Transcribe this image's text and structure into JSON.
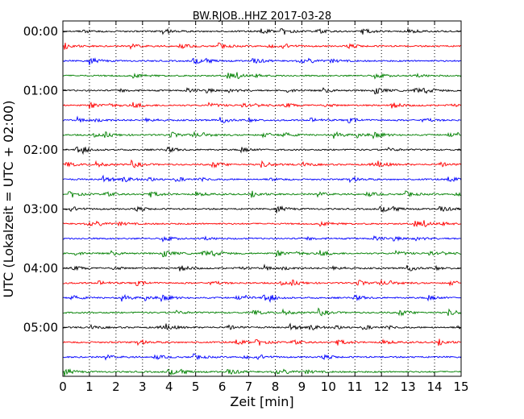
{
  "chart_data": {
    "type": "line",
    "title": "BW.RJOB..HHZ 2017-03-28",
    "xlabel": "Zeit  [min]",
    "ylabel": "UTC (Lokalzeit = UTC + 02:00)",
    "xlim": [
      0,
      15
    ],
    "x_ticks": [
      "0",
      "1",
      "2",
      "3",
      "4",
      "5",
      "6",
      "7",
      "8",
      "9",
      "10",
      "11",
      "12",
      "13",
      "14",
      "15"
    ],
    "y_ticks": [
      "00:00",
      "01:00",
      "02:00",
      "03:00",
      "04:00",
      "05:00"
    ],
    "grid": "vertical dotted",
    "traces_per_hour": 4,
    "trace_minutes": 15,
    "trace_colors": [
      "#000000",
      "#ff0000",
      "#0000ff",
      "#008000"
    ],
    "traces": [
      {
        "start": "00:00",
        "color": "#000000"
      },
      {
        "start": "00:15",
        "color": "#ff0000"
      },
      {
        "start": "00:30",
        "color": "#0000ff"
      },
      {
        "start": "00:45",
        "color": "#008000"
      },
      {
        "start": "01:00",
        "color": "#000000"
      },
      {
        "start": "01:15",
        "color": "#ff0000"
      },
      {
        "start": "01:30",
        "color": "#0000ff"
      },
      {
        "start": "01:45",
        "color": "#008000"
      },
      {
        "start": "02:00",
        "color": "#000000"
      },
      {
        "start": "02:15",
        "color": "#ff0000"
      },
      {
        "start": "02:30",
        "color": "#0000ff"
      },
      {
        "start": "02:45",
        "color": "#008000"
      },
      {
        "start": "03:00",
        "color": "#000000"
      },
      {
        "start": "03:15",
        "color": "#ff0000"
      },
      {
        "start": "03:30",
        "color": "#0000ff"
      },
      {
        "start": "03:45",
        "color": "#008000"
      },
      {
        "start": "04:00",
        "color": "#000000"
      },
      {
        "start": "04:15",
        "color": "#ff0000"
      },
      {
        "start": "04:30",
        "color": "#0000ff"
      },
      {
        "start": "04:45",
        "color": "#008000"
      },
      {
        "start": "05:00",
        "color": "#000000"
      },
      {
        "start": "05:15",
        "color": "#ff0000"
      },
      {
        "start": "05:30",
        "color": "#0000ff"
      },
      {
        "start": "05:45",
        "color": "#008000"
      }
    ]
  }
}
